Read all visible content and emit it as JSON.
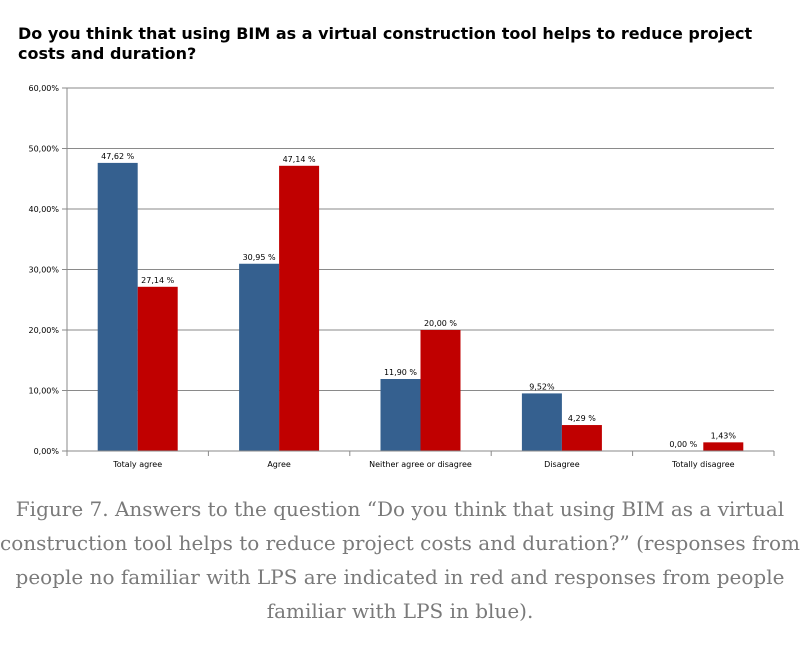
{
  "chart_data": {
    "type": "bar",
    "title": "Do you think that using BIM as a virtual construction tool helps to reduce project costs and duration?",
    "categories": [
      "Totaly agree",
      "Agree",
      "Neither agree or disagree",
      "Disagree",
      "Totally disagree"
    ],
    "series": [
      {
        "values": [
          47.62,
          30.95,
          11.9,
          9.52,
          0.0
        ],
        "labels": [
          "47,62 %",
          "30,95 %",
          "11,90 %",
          "9,52%",
          "0,00 %"
        ],
        "color": "#35608f"
      },
      {
        "values": [
          27.14,
          47.14,
          20.0,
          4.29,
          1.43
        ],
        "labels": [
          "27,14 %",
          "47,14 %",
          "20,00 %",
          "4,29 %",
          "1,43%"
        ],
        "color": "#c00000"
      }
    ],
    "ylim": [
      0,
      60
    ],
    "yticks": [
      0,
      10,
      20,
      30,
      40,
      50,
      60
    ],
    "ytick_labels": [
      "0,00%",
      "10,00%",
      "20,00%",
      "30,00%",
      "40,00%",
      "50,00%",
      "60,00%"
    ],
    "grid": true,
    "legend": "none"
  },
  "caption": "Figure 7. Answers to the question “Do you think that using BIM as a virtual construction tool helps to reduce project costs and duration?” (responses from people no familiar with LPS are indicated in red and  responses from people familiar with LPS  in blue)."
}
